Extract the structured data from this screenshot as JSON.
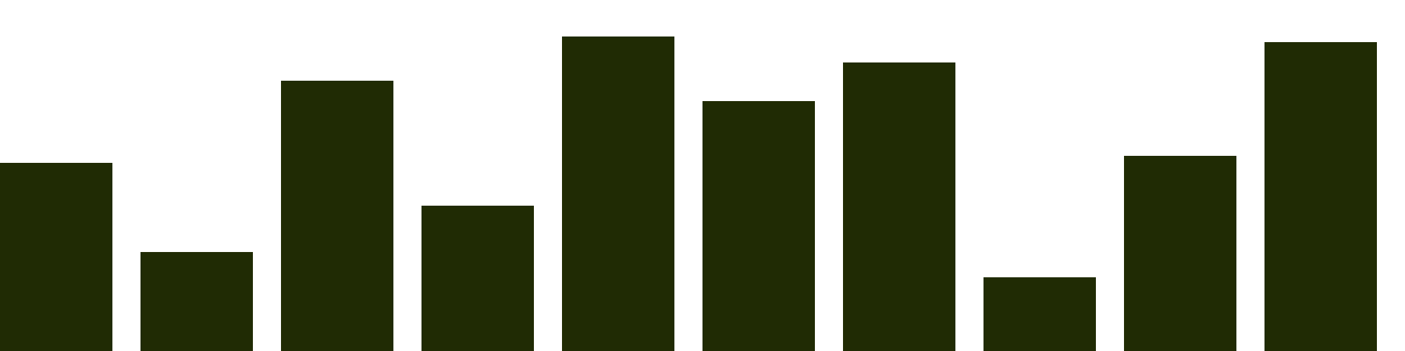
{
  "chart_data": {
    "type": "bar",
    "categories": [
      "",
      "",
      "",
      "",
      "",
      "",
      "",
      "",
      "",
      ""
    ],
    "values": [
      268,
      141,
      385,
      207,
      448,
      356,
      411,
      105,
      278,
      440
    ],
    "title": "",
    "xlabel": "",
    "ylabel": "",
    "ylim": [
      0,
      500
    ],
    "grid": false,
    "legend": "none"
  },
  "colors": {
    "bar": "#202b04",
    "background": "#ffffff"
  }
}
